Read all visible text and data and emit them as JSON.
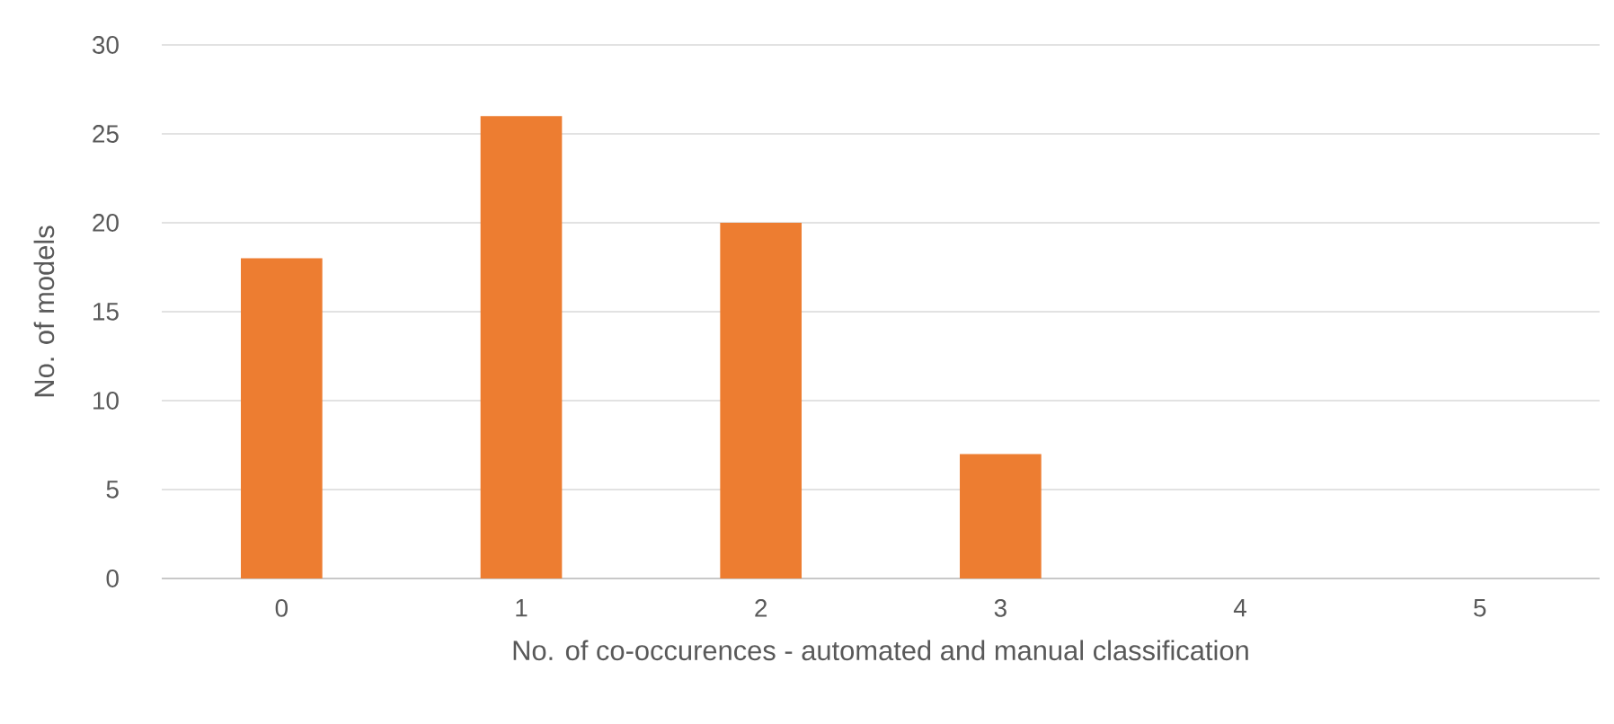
{
  "chart_data": {
    "type": "bar",
    "xlabel": "No. of co-occurences - automated and manual classification",
    "ylabel": "No. of models",
    "categories": [
      "0",
      "1",
      "2",
      "3",
      "4",
      "5"
    ],
    "values": [
      18,
      26,
      20,
      7,
      0,
      0
    ],
    "color": "#ed7d31",
    "ylim": [
      0,
      30
    ],
    "yticks": [
      0,
      5,
      10,
      15,
      20,
      25,
      30
    ],
    "grid": "y"
  }
}
